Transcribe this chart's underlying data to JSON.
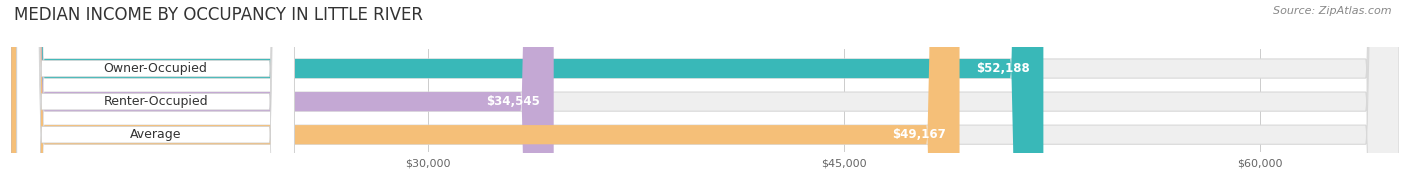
{
  "title": "MEDIAN INCOME BY OCCUPANCY IN LITTLE RIVER",
  "source": "Source: ZipAtlas.com",
  "categories": [
    "Owner-Occupied",
    "Renter-Occupied",
    "Average"
  ],
  "values": [
    52188,
    34545,
    49167
  ],
  "labels": [
    "$52,188",
    "$34,545",
    "$49,167"
  ],
  "bar_colors": [
    "#39b8b8",
    "#c4a8d4",
    "#f5bf78"
  ],
  "bar_bg_color": "#efefef",
  "bar_border_color": "#d8d8d8",
  "x_min": 15000,
  "x_max": 65000,
  "tick_values": [
    30000,
    45000,
    60000
  ],
  "tick_labels": [
    "$30,000",
    "$45,000",
    "$60,000"
  ],
  "title_fontsize": 12,
  "source_fontsize": 8,
  "label_fontsize": 8.5,
  "cat_fontsize": 9,
  "bar_height": 0.58,
  "background_color": "#ffffff",
  "label_text_color": "#ffffff",
  "cat_text_color": "#333333",
  "grid_color": "#cccccc"
}
